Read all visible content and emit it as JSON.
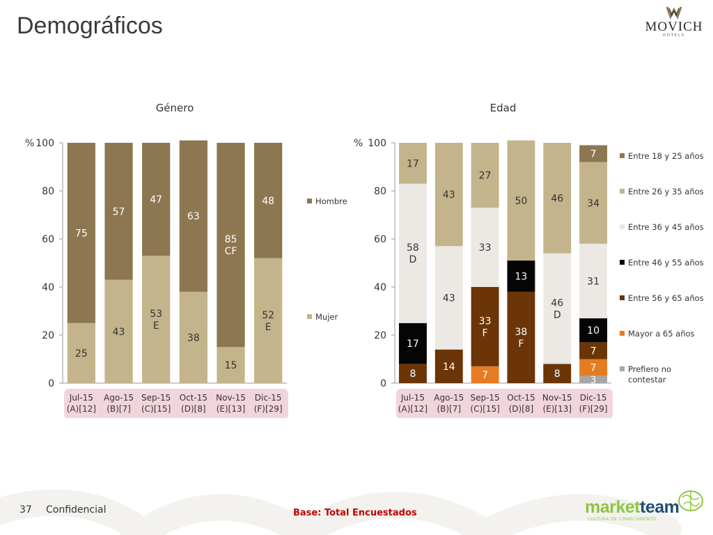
{
  "page": {
    "title": "Demográficos",
    "page_number": "37",
    "confidential": "Confidencial",
    "base_note": "Base: Total Encuestados"
  },
  "logos": {
    "movich": "MOVICH",
    "movich_sub": "HOTELS",
    "marketteam_market": "market",
    "marketteam_team": "team",
    "marketteam_sub": "CULTURA DE CONOCIMIENTO"
  },
  "colors": {
    "hombre": "#8d7750",
    "mujer": "#c4b48b",
    "edad_18_25": "#8d7750",
    "edad_26_35": "#c4b48b",
    "edad_36_45": "#ece9e4",
    "edad_46_55": "#050505",
    "edad_56_65": "#6b3507",
    "edad_65_mas": "#e57c21",
    "edad_prefiero": "#a6a6a6",
    "tick_highlight": "#f2d5dc"
  },
  "chart_data": [
    {
      "type": "bar",
      "stacked": true,
      "title": "Género",
      "ylabel": "%",
      "ylim": [
        0,
        100
      ],
      "yticks": [
        0,
        20,
        40,
        60,
        80,
        100
      ],
      "categories": [
        [
          "Jul-15",
          "(A)[12]"
        ],
        [
          "Ago-15",
          "(B)[7]"
        ],
        [
          "Sep-15",
          "(C)[15]"
        ],
        [
          "Oct-15",
          "(D)[8]"
        ],
        [
          "Nov-15",
          "(E)[13]"
        ],
        [
          "Dic-15",
          "(F)[29]"
        ]
      ],
      "series": [
        {
          "name": "Mujer",
          "values": [
            25,
            43,
            53,
            38,
            15,
            52
          ],
          "labels": [
            [
              "25"
            ],
            [
              "43"
            ],
            [
              "53",
              "E"
            ],
            [
              "38"
            ],
            [
              "15"
            ],
            [
              "52",
              "E"
            ]
          ]
        },
        {
          "name": "Hombre",
          "values": [
            75,
            57,
            47,
            63,
            85,
            48
          ],
          "labels": [
            [
              "75"
            ],
            [
              "57"
            ],
            [
              "47"
            ],
            [
              "63"
            ],
            [
              "85",
              "CF"
            ],
            [
              "48"
            ]
          ]
        }
      ],
      "legend": [
        "Hombre",
        "Mujer"
      ],
      "legend_position": "right"
    },
    {
      "type": "bar",
      "stacked": true,
      "title": "Edad",
      "ylabel": "%",
      "ylim": [
        0,
        100
      ],
      "yticks": [
        0,
        20,
        40,
        60,
        80,
        100
      ],
      "categories": [
        [
          "Jul-15",
          "(A)[12]"
        ],
        [
          "Ago-15",
          "(B)[7]"
        ],
        [
          "Sep-15",
          "(C)[15]"
        ],
        [
          "Oct-15",
          "(D)[8]"
        ],
        [
          "Nov-15",
          "(E)[13]"
        ],
        [
          "Dic-15",
          "(F)[29]"
        ]
      ],
      "series": [
        {
          "name": "Prefiero no contestar",
          "values": [
            0,
            0,
            0,
            0,
            0,
            3
          ],
          "labels": [
            null,
            null,
            null,
            null,
            null,
            [
              "3"
            ]
          ]
        },
        {
          "name": "Mayor a 65 años",
          "values": [
            0,
            0,
            7,
            0,
            0,
            7
          ],
          "labels": [
            null,
            null,
            [
              "7"
            ],
            null,
            null,
            [
              "7"
            ]
          ]
        },
        {
          "name": "Entre 56 y 65 años",
          "values": [
            8,
            14,
            33,
            38,
            8,
            7
          ],
          "labels": [
            [
              "8"
            ],
            [
              "14"
            ],
            [
              "33",
              "F"
            ],
            [
              "38",
              "F"
            ],
            [
              "8"
            ],
            [
              "7"
            ]
          ]
        },
        {
          "name": "Entre 46 y 55 años",
          "values": [
            17,
            0,
            0,
            13,
            0,
            10
          ],
          "labels": [
            [
              "17"
            ],
            null,
            null,
            [
              "13"
            ],
            null,
            [
              "10"
            ]
          ]
        },
        {
          "name": "Entre 36 y 45 años",
          "values": [
            58,
            43,
            33,
            0,
            46,
            31
          ],
          "labels": [
            [
              "58",
              "D"
            ],
            [
              "43"
            ],
            [
              "33"
            ],
            null,
            [
              "46",
              "D"
            ],
            [
              "31"
            ]
          ]
        },
        {
          "name": "Entre 26 y 35 años",
          "values": [
            17,
            43,
            27,
            50,
            46,
            34
          ],
          "labels": [
            [
              "17"
            ],
            [
              "43"
            ],
            [
              "27"
            ],
            [
              "50"
            ],
            [
              "46"
            ],
            [
              "34"
            ]
          ]
        },
        {
          "name": "Entre 18 y 25 años",
          "values": [
            0,
            0,
            0,
            0,
            0,
            7
          ],
          "labels": [
            null,
            null,
            null,
            null,
            null,
            [
              "7"
            ]
          ]
        }
      ],
      "legend": [
        "Entre 18 y 25 años",
        "Entre 26 y 35 años",
        "Entre 36 y 45 años",
        "Entre 46 y 55 años",
        "Entre 56 y 65 años",
        "Mayor a 65 años",
        "Prefiero no contestar"
      ],
      "legend_position": "right"
    }
  ]
}
